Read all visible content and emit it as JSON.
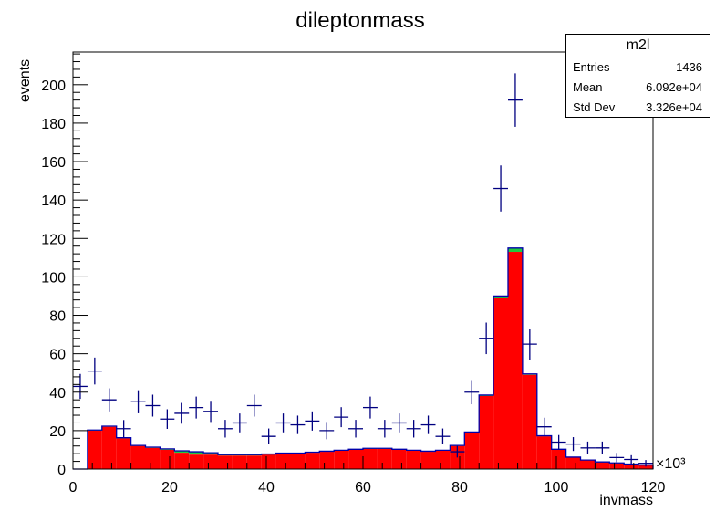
{
  "chart_data": {
    "type": "bar",
    "title": "dileptonmass",
    "xlabel": "invmass",
    "ylabel": "events",
    "x_multiplier_label": "×10³",
    "xlim": [
      0,
      120
    ],
    "ylim": [
      0,
      217
    ],
    "x_ticks": [
      0,
      20,
      40,
      60,
      80,
      100,
      120
    ],
    "y_ticks": [
      0,
      20,
      40,
      60,
      80,
      100,
      120,
      140,
      160,
      180,
      200
    ],
    "grid": false,
    "bin_width": 3,
    "x": [
      1.5,
      4.5,
      7.5,
      10.5,
      13.5,
      16.5,
      19.5,
      22.5,
      25.5,
      28.5,
      31.5,
      34.5,
      37.5,
      40.5,
      43.5,
      46.5,
      49.5,
      52.5,
      55.5,
      58.5,
      61.5,
      64.5,
      67.5,
      70.5,
      73.5,
      76.5,
      79.5,
      82.5,
      85.5,
      88.5,
      91.5,
      94.5,
      97.5,
      100.5,
      103.5,
      106.5,
      109.5,
      112.5,
      115.5,
      118.5
    ],
    "series": [
      {
        "type": "stacked-hist",
        "color": "#ff0000",
        "values": [
          0,
          20,
          22,
          16,
          12,
          11,
          10,
          8.5,
          7.5,
          7.5,
          7,
          7,
          7,
          7.5,
          8,
          8,
          8.5,
          9,
          9.5,
          10,
          10.5,
          10.5,
          10,
          9.5,
          9,
          9.5,
          12,
          19,
          38,
          89,
          113,
          49,
          17,
          10,
          6,
          4.5,
          3.5,
          3,
          2.5,
          2
        ]
      },
      {
        "type": "stacked-hist",
        "color": "#22c93e",
        "values": [
          0,
          0.3,
          0.3,
          0.3,
          0.3,
          0.4,
          0.5,
          1,
          1.5,
          1,
          0.5,
          0.5,
          0.5,
          0.3,
          0.3,
          0.3,
          0.3,
          0.3,
          0.3,
          0.3,
          0.3,
          0.3,
          0.3,
          0.3,
          0.3,
          0.3,
          0.3,
          0.3,
          0.5,
          1,
          2,
          0.5,
          0.3,
          0.3,
          0.2,
          0.2,
          0.2,
          0.2,
          0.1,
          0.1
        ]
      },
      {
        "type": "data-points",
        "color": "#000080",
        "values": [
          43,
          51,
          36,
          21,
          35,
          33,
          26,
          29,
          32,
          30,
          21,
          24,
          33,
          17,
          24,
          23,
          25,
          20,
          27,
          21,
          32,
          21,
          24,
          21,
          23,
          17,
          9,
          40,
          68,
          146,
          192,
          65,
          22,
          14,
          13,
          11,
          11,
          6,
          5,
          3
        ],
        "errors": [
          6.5,
          7,
          6,
          4.5,
          6,
          5.7,
          5.1,
          5.4,
          5.7,
          5.5,
          4.6,
          4.9,
          5.7,
          4.1,
          4.9,
          4.8,
          5,
          4.5,
          5.2,
          4.6,
          5.7,
          4.6,
          4.9,
          4.6,
          4.8,
          4.1,
          3,
          6.3,
          8.2,
          12,
          13.9,
          8.1,
          4.7,
          3.7,
          3.6,
          3.3,
          3.3,
          2.4,
          2.2,
          1.7
        ]
      }
    ]
  },
  "stats": {
    "name": "m2l",
    "entries_label": "Entries",
    "entries": "1436",
    "mean_label": "Mean",
    "mean": "6.092e+04",
    "stddev_label": "Std Dev",
    "stddev": "3.326e+04"
  }
}
